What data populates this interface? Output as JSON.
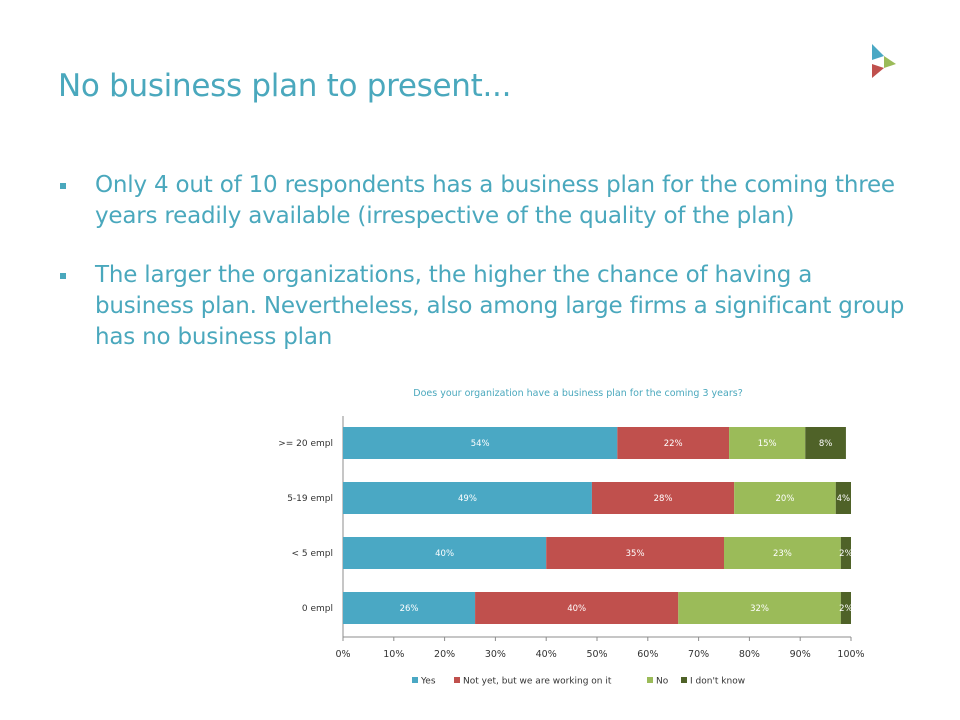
{
  "slide": {
    "title": "No business plan to present...",
    "bullets": [
      "Only 4 out of 10 respondents has a business plan for the coming three years readily available (irrespective of the quality of the plan)",
      "The larger the organizations, the higher the chance of having a business plan. Nevertheless, also among large firms a significant group has no business plan"
    ]
  },
  "colors": {
    "title": "#4aa8bd",
    "yes": "#4aa8c4",
    "not_yet": "#c0504d",
    "no": "#9bbb59",
    "dont_know": "#4f6228"
  },
  "icons": [
    "logo-icon",
    "bullet-square-icon"
  ],
  "chart_data": {
    "type": "bar",
    "orientation": "horizontal",
    "stacked": "percent",
    "title": "Does your organization have a business plan for the coming 3 years?",
    "categories": [
      ">= 20 empl",
      "5-19 empl",
      "< 5 empl",
      "0 empl"
    ],
    "series": [
      {
        "name": "Yes",
        "values": [
          54,
          49,
          40,
          26
        ],
        "labels": [
          "54%",
          "49%",
          "40%",
          "26%"
        ],
        "color": "#4aa8c4"
      },
      {
        "name": "Not yet, but we are working on it",
        "values": [
          22,
          28,
          35,
          40
        ],
        "labels": [
          "22%",
          "28%",
          "35%",
          "40%"
        ],
        "color": "#c0504d"
      },
      {
        "name": "No",
        "values": [
          15,
          20,
          23,
          32
        ],
        "labels": [
          "15%",
          "20%",
          "23%",
          "32%"
        ],
        "color": "#9bbb59"
      },
      {
        "name": "I don't know",
        "values": [
          8,
          4,
          2,
          2
        ],
        "labels": [
          "8%",
          "4%",
          "2%",
          "2%"
        ],
        "color": "#4f6228"
      }
    ],
    "xlim": [
      0,
      100
    ],
    "xticks": [
      "0%",
      "10%",
      "20%",
      "30%",
      "40%",
      "50%",
      "60%",
      "70%",
      "80%",
      "90%",
      "100%"
    ],
    "grid": false,
    "legend": "bottom"
  }
}
